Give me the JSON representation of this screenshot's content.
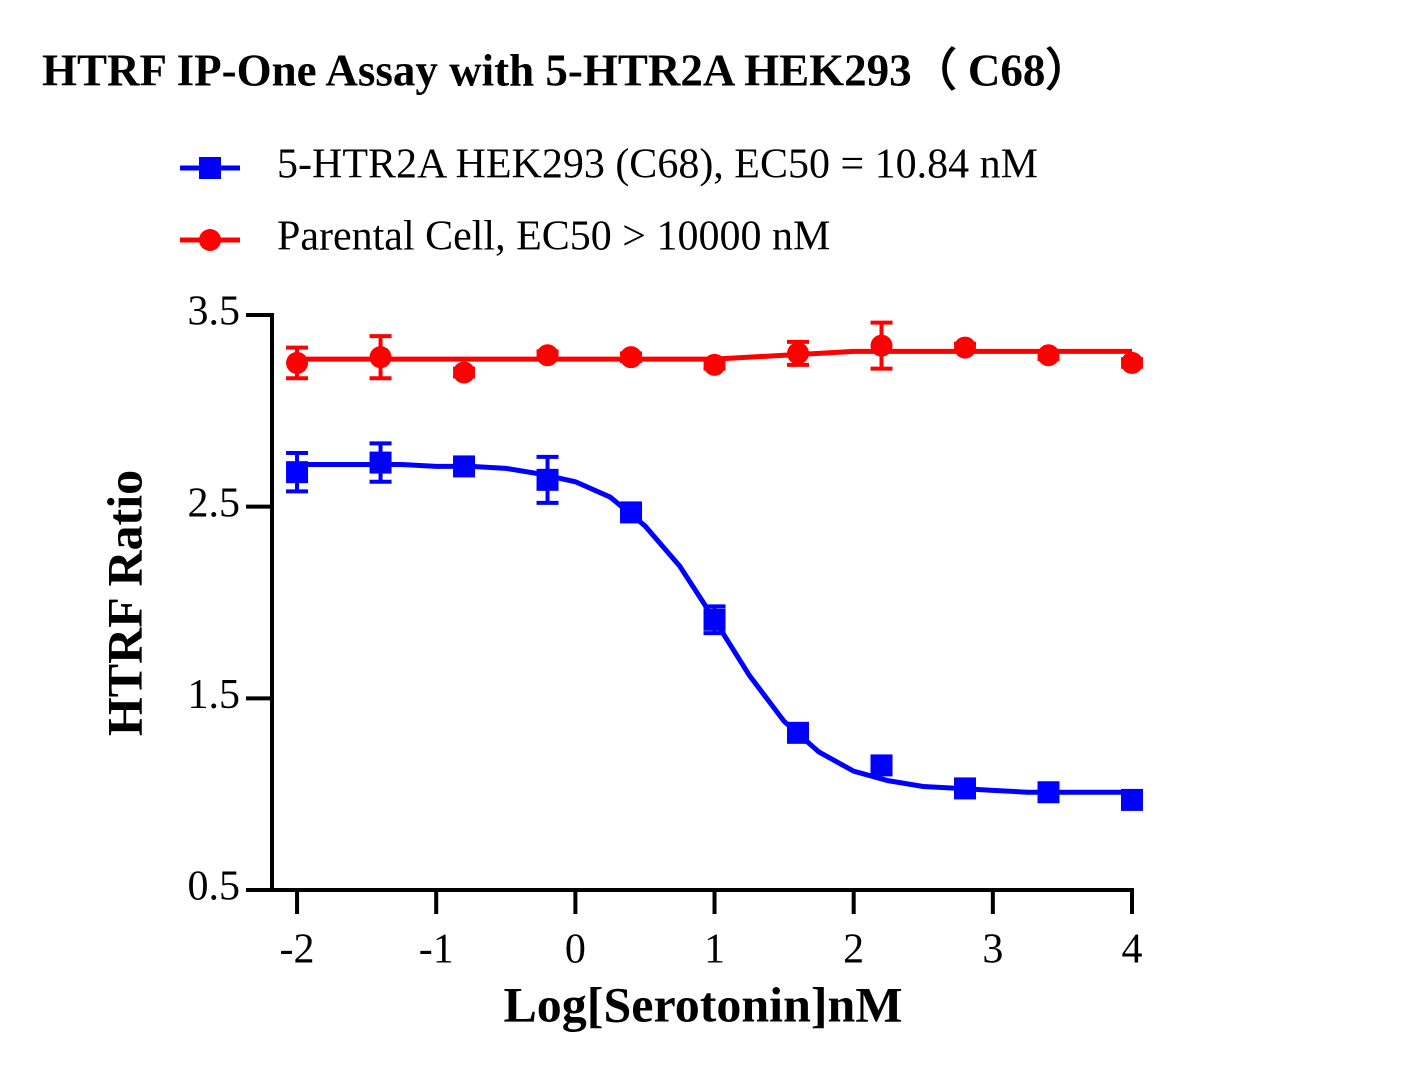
{
  "chart_data": {
    "type": "dose-response",
    "title": "HTRF IP-One Assay with 5-HTR2A HEK293（ C68）",
    "x_label": "Log[Serotonin]nM",
    "y_label": "HTRF Ratio",
    "x": [
      -2,
      -1.4,
      -0.8,
      -0.2,
      0.4,
      1.0,
      1.6,
      2.2,
      2.8,
      3.4,
      4.0
    ],
    "fit_x": [
      -2,
      -1.75,
      -1.5,
      -1.25,
      -1,
      -0.75,
      -0.5,
      -0.25,
      0,
      0.25,
      0.5,
      0.75,
      1,
      1.25,
      1.5,
      1.75,
      2,
      2.25,
      2.5,
      2.75,
      3,
      3.25,
      3.5,
      3.75,
      4
    ],
    "series": [
      {
        "name": "5-HTR2A HEK293 (C68), EC50 = 10.84 nM",
        "color": "#0000ff",
        "marker": "square",
        "values": [
          2.68,
          2.73,
          2.71,
          2.64,
          2.47,
          1.91,
          1.32,
          1.15,
          1.03,
          1.01,
          0.97
        ],
        "errors": [
          0.1,
          0.1,
          0.02,
          0.12,
          0.02,
          0.07,
          0.02,
          0.04,
          0.02,
          0.02,
          0.02
        ],
        "fit": [
          2.72,
          2.72,
          2.72,
          2.72,
          2.71,
          2.71,
          2.7,
          2.67,
          2.63,
          2.55,
          2.4,
          2.19,
          1.91,
          1.62,
          1.38,
          1.22,
          1.12,
          1.07,
          1.04,
          1.03,
          1.02,
          1.01,
          1.01,
          1.01,
          1.01
        ]
      },
      {
        "name": "Parental Cell,  EC50 > 10000 nM",
        "color": "#ff0000",
        "marker": "circle",
        "values": [
          3.25,
          3.28,
          3.2,
          3.29,
          3.28,
          3.24,
          3.3,
          3.34,
          3.33,
          3.29,
          3.25
        ],
        "errors": [
          0.08,
          0.11,
          0.02,
          0.02,
          0.02,
          0.02,
          0.06,
          0.12,
          0.02,
          0.02,
          0.02
        ],
        "fit": [
          3.27,
          3.27,
          3.27,
          3.27,
          3.27,
          3.27,
          3.27,
          3.27,
          3.27,
          3.27,
          3.27,
          3.27,
          3.27,
          3.28,
          3.29,
          3.3,
          3.31,
          3.31,
          3.31,
          3.31,
          3.31,
          3.31,
          3.31,
          3.31,
          3.31
        ]
      }
    ],
    "xlim": [
      -2.18,
      4.0
    ],
    "ylim": [
      0.5,
      3.5
    ],
    "xticks": [
      -2,
      -1,
      0,
      1,
      2,
      3,
      4
    ],
    "yticks": [
      0.5,
      1.5,
      2.5,
      3.5
    ]
  }
}
